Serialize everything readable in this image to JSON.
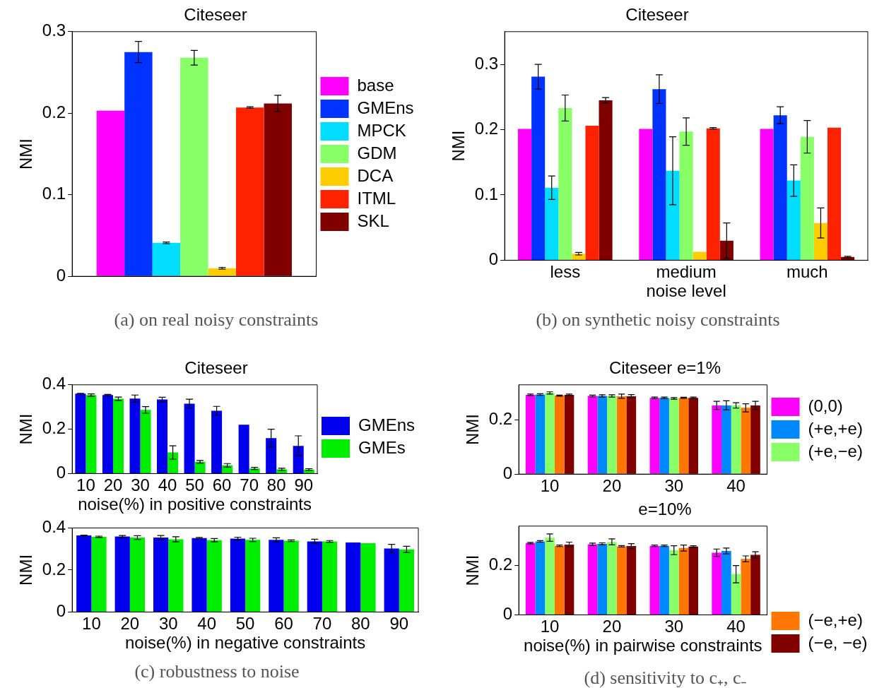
{
  "chart_data": [
    {
      "type": "bar",
      "title": "Citeseer",
      "ylabel": "NMI",
      "categories": [
        null
      ],
      "ylim": [
        0,
        0.3
      ],
      "yticks": [
        0,
        0.1,
        0.2,
        0.3
      ],
      "grid": false,
      "legend": "right",
      "annotations": [
        "(a) on real noisy constraints"
      ],
      "series": [
        {
          "name": "base",
          "color": "#ff00ff",
          "values": [
            0.203
          ],
          "errors": [
            null
          ]
        },
        {
          "name": "GMEns",
          "color": "#0033ff",
          "values": [
            0.275
          ],
          "errors": [
            0.013
          ]
        },
        {
          "name": "MPCK",
          "color": "#00ddff",
          "values": [
            0.041
          ],
          "errors": [
            0.001
          ]
        },
        {
          "name": "GDM",
          "color": "#88ff66",
          "values": [
            0.268
          ],
          "errors": [
            0.009
          ]
        },
        {
          "name": "DCA",
          "color": "#ffcc00",
          "values": [
            0.01
          ],
          "errors": [
            0.001
          ]
        },
        {
          "name": "ITML",
          "color": "#ff2200",
          "values": [
            0.207
          ],
          "errors": [
            0.001
          ]
        },
        {
          "name": "SKL",
          "color": "#800000",
          "values": [
            0.212
          ],
          "errors": [
            0.01
          ]
        }
      ]
    },
    {
      "type": "bar",
      "title": "Citeseer",
      "ylabel": "NMI",
      "xlabel": "noise level",
      "categories": [
        "less",
        "medium",
        "much"
      ],
      "ylim": [
        0,
        0.35
      ],
      "yticks": [
        0,
        0.1,
        0.2,
        0.3
      ],
      "grid": false,
      "annotations": [
        "(b) on synthetic noisy constraints"
      ],
      "series": [
        {
          "color": "#ff00ff",
          "values": [
            0.201,
            0.201,
            0.201
          ],
          "errors": [
            null,
            null,
            null
          ]
        },
        {
          "color": "#0033ff",
          "values": [
            0.281,
            0.262,
            0.222
          ],
          "errors": [
            0.019,
            0.022,
            0.013
          ]
        },
        {
          "color": "#00ddff",
          "values": [
            0.111,
            0.137,
            0.122
          ],
          "errors": [
            0.018,
            0.052,
            0.024
          ]
        },
        {
          "color": "#88ff66",
          "values": [
            0.233,
            0.197,
            0.189
          ],
          "errors": [
            0.02,
            0.021,
            0.025
          ]
        },
        {
          "color": "#ffcc00",
          "values": [
            0.01,
            0.013,
            0.057
          ],
          "errors": [
            0.002,
            null,
            0.023
          ]
        },
        {
          "color": "#ff2200",
          "values": [
            0.206,
            0.202,
            0.203
          ],
          "errors": [
            null,
            0.001,
            null
          ]
        },
        {
          "color": "#800000",
          "values": [
            0.245,
            0.03,
            0.005
          ],
          "errors": [
            0.004,
            0.027,
            0.001
          ]
        }
      ]
    },
    {
      "type": "bar",
      "title": "Citeseer",
      "ylabel": "NMI",
      "xlabel": "noise(%) in positive constraints",
      "categories": [
        "10",
        "20",
        "30",
        "40",
        "50",
        "60",
        "70",
        "80",
        "90"
      ],
      "ylim": [
        0,
        0.4
      ],
      "yticks": [
        0,
        0.2,
        0.4
      ],
      "grid": false,
      "legend": "right",
      "series": [
        {
          "name": "GMEns",
          "color": "#0000ee",
          "values": [
            0.36,
            0.354,
            0.338,
            0.334,
            0.315,
            0.283,
            0.22,
            0.16,
            0.125
          ],
          "errors": [
            0.002,
            0.003,
            0.016,
            0.01,
            0.02,
            0.02,
            null,
            0.04,
            0.045
          ]
        },
        {
          "name": "GMEs",
          "color": "#00ee00",
          "values": [
            0.354,
            0.337,
            0.287,
            0.095,
            0.053,
            0.037,
            0.023,
            0.019,
            0.018
          ],
          "errors": [
            0.005,
            0.008,
            0.015,
            0.03,
            0.006,
            0.008,
            0.005,
            0.005,
            0.004
          ]
        }
      ]
    },
    {
      "type": "bar",
      "ylabel": "NMI",
      "xlabel": "noise(%) in negative constraints",
      "categories": [
        "10",
        "20",
        "30",
        "40",
        "50",
        "60",
        "70",
        "80",
        "90"
      ],
      "ylim": [
        0,
        0.4
      ],
      "yticks": [
        0,
        0.2,
        0.4
      ],
      "grid": false,
      "annotations": [
        "(c) robustness to noise"
      ],
      "series": [
        {
          "color": "#0000ee",
          "values": [
            0.364,
            0.359,
            0.354,
            0.352,
            0.349,
            0.343,
            0.336,
            0.331,
            0.302
          ],
          "errors": [
            0.002,
            0.005,
            0.01,
            0.003,
            0.007,
            0.01,
            0.01,
            null,
            0.02
          ]
        },
        {
          "color": "#00ee00",
          "values": [
            0.358,
            0.354,
            0.346,
            0.342,
            0.343,
            0.339,
            0.336,
            0.327,
            0.298
          ],
          "errors": [
            0.003,
            0.009,
            0.012,
            0.008,
            0.008,
            0.004,
            0.004,
            null,
            0.015
          ]
        }
      ]
    },
    {
      "type": "bar",
      "title": "Citeseer e=1%",
      "ylabel": "NMI",
      "categories": [
        "10",
        "20",
        "30",
        "40"
      ],
      "ylim": [
        0,
        0.33
      ],
      "yticks": [
        0,
        0.2
      ],
      "grid": false,
      "legend": "right",
      "series": [
        {
          "name": "(0,0)",
          "color": "#ff00ff",
          "values": [
            0.293,
            0.289,
            0.282,
            0.254
          ],
          "errors": [
            0.003,
            0.003,
            0.003,
            0.015
          ]
        },
        {
          "name": "(+e,+e)",
          "color": "#0088ff",
          "values": [
            0.294,
            0.289,
            0.282,
            0.254
          ],
          "errors": [
            0.003,
            0.004,
            0.003,
            0.017
          ]
        },
        {
          "name": "(+e,−e)",
          "color": "#88ff66",
          "values": [
            0.3,
            0.289,
            0.28,
            0.254
          ],
          "errors": [
            0.004,
            0.004,
            0.003,
            0.01
          ]
        },
        {
          "color": "#ff7700",
          "values": [
            0.29,
            0.288,
            0.282,
            0.245
          ],
          "errors": [
            0.002,
            0.008,
            0.002,
            0.015
          ]
        },
        {
          "color": "#800000",
          "values": [
            0.293,
            0.288,
            0.282,
            0.254
          ],
          "errors": [
            0.003,
            0.006,
            0.003,
            0.015
          ]
        }
      ]
    },
    {
      "type": "bar",
      "title": "e=10%",
      "ylabel": "NMI",
      "xlabel": "noise(%) in pairwise constraints",
      "categories": [
        "10",
        "20",
        "30",
        "40"
      ],
      "ylim": [
        0,
        0.36
      ],
      "yticks": [
        0,
        0.2
      ],
      "grid": false,
      "legend": "bottom right",
      "annotations": [
        "(d) sensitivity to c₊, c₋"
      ],
      "series": [
        {
          "color": "#ff00ff",
          "values": [
            0.291,
            0.286,
            0.28,
            0.252
          ],
          "errors": [
            0.003,
            0.005,
            0.003,
            0.015
          ]
        },
        {
          "color": "#0088ff",
          "values": [
            0.298,
            0.288,
            0.28,
            0.259
          ],
          "errors": [
            0.003,
            0.004,
            0.003,
            0.012
          ]
        },
        {
          "color": "#88ff66",
          "values": [
            0.313,
            0.296,
            0.262,
            0.165
          ],
          "errors": [
            0.015,
            0.012,
            0.018,
            0.035
          ]
        },
        {
          "name": "(−e,+e)",
          "color": "#ff7700",
          "values": [
            0.28,
            0.278,
            0.271,
            0.227
          ],
          "errors": [
            0.003,
            0.003,
            0.012,
            0.012
          ]
        },
        {
          "name": "(−e, −e)",
          "color": "#800000",
          "values": [
            0.285,
            0.279,
            0.277,
            0.243
          ],
          "errors": [
            0.01,
            0.01,
            0.003,
            0.013
          ]
        }
      ]
    }
  ]
}
